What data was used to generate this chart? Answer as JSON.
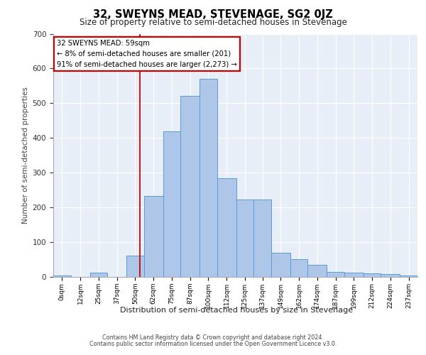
{
  "title": "32, SWEYNS MEAD, STEVENAGE, SG2 0JZ",
  "subtitle": "Size of property relative to semi-detached houses in Stevenage",
  "xlabel": "Distribution of semi-detached houses by size in Stevenage",
  "ylabel": "Number of semi-detached properties",
  "annotation_line1": "32 SWEYNS MEAD: 59sqm",
  "annotation_line2": "← 8% of semi-detached houses are smaller (201)",
  "annotation_line3": "91% of semi-detached houses are larger (2,273) →",
  "footer_line1": "Contains HM Land Registry data © Crown copyright and database right 2024.",
  "footer_line2": "Contains public sector information licensed under the Open Government Licence v3.0.",
  "bins_start": [
    0,
    12,
    25,
    37,
    50,
    62,
    75,
    87,
    100,
    112,
    125,
    137,
    149,
    162,
    174,
    187,
    199,
    212,
    224,
    237
  ],
  "bins_end": [
    12,
    25,
    37,
    50,
    62,
    75,
    87,
    100,
    112,
    125,
    137,
    149,
    162,
    174,
    187,
    199,
    212,
    224,
    237,
    249
  ],
  "heights": [
    5,
    0,
    12,
    0,
    62,
    232,
    420,
    522,
    570,
    285,
    222,
    222,
    70,
    52,
    35,
    15,
    12,
    10,
    8,
    5
  ],
  "property_size": 59,
  "bar_color": "#aec6e8",
  "bar_edge_color": "#5b9bd5",
  "vline_color": "#cc0000",
  "annotation_box_edgecolor": "#cc0000",
  "background_color": "#e8eef7",
  "ylim": [
    0,
    700
  ],
  "xlim": [
    0,
    249
  ],
  "yticks": [
    0,
    100,
    200,
    300,
    400,
    500,
    600,
    700
  ],
  "title_fontsize": 10.5,
  "subtitle_fontsize": 8.5,
  "ylabel_fontsize": 7.5,
  "xlabel_fontsize": 8,
  "ytick_fontsize": 7.5,
  "xtick_fontsize": 6.5,
  "footer_fontsize": 5.8,
  "annotation_fontsize": 7.2
}
